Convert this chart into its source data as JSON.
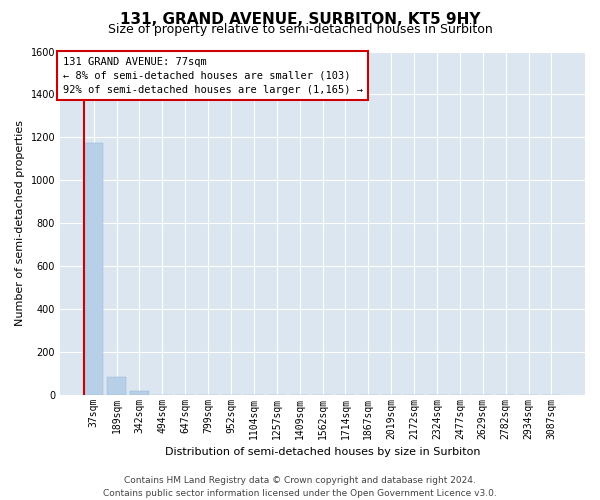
{
  "title": "131, GRAND AVENUE, SURBITON, KT5 9HY",
  "subtitle": "Size of property relative to semi-detached houses in Surbiton",
  "xlabel": "Distribution of semi-detached houses by size in Surbiton",
  "ylabel": "Number of semi-detached properties",
  "categories": [
    "37sqm",
    "189sqm",
    "342sqm",
    "494sqm",
    "647sqm",
    "799sqm",
    "952sqm",
    "1104sqm",
    "1257sqm",
    "1409sqm",
    "1562sqm",
    "1714sqm",
    "1867sqm",
    "2019sqm",
    "2172sqm",
    "2324sqm",
    "2477sqm",
    "2629sqm",
    "2782sqm",
    "2934sqm",
    "3087sqm"
  ],
  "bar_values": [
    1175,
    85,
    18,
    0,
    0,
    0,
    0,
    0,
    0,
    0,
    0,
    0,
    0,
    0,
    0,
    0,
    0,
    0,
    0,
    0,
    0
  ],
  "bar_color": "#b8cfe8",
  "highlight_bar_color": "#cc0000",
  "ylim": [
    0,
    1600
  ],
  "yticks": [
    0,
    200,
    400,
    600,
    800,
    1000,
    1200,
    1400,
    1600
  ],
  "annotation_text": "131 GRAND AVENUE: 77sqm\n← 8% of semi-detached houses are smaller (103)\n92% of semi-detached houses are larger (1,165) →",
  "annotation_box_color": "#cc0000",
  "footer_line1": "Contains HM Land Registry data © Crown copyright and database right 2024.",
  "footer_line2": "Contains public sector information licensed under the Open Government Licence v3.0.",
  "bg_color": "#dce6f0",
  "grid_color": "#ffffff",
  "title_fontsize": 11,
  "subtitle_fontsize": 9,
  "axis_label_fontsize": 8,
  "tick_fontsize": 7,
  "annotation_fontsize": 7.5,
  "footer_fontsize": 6.5
}
